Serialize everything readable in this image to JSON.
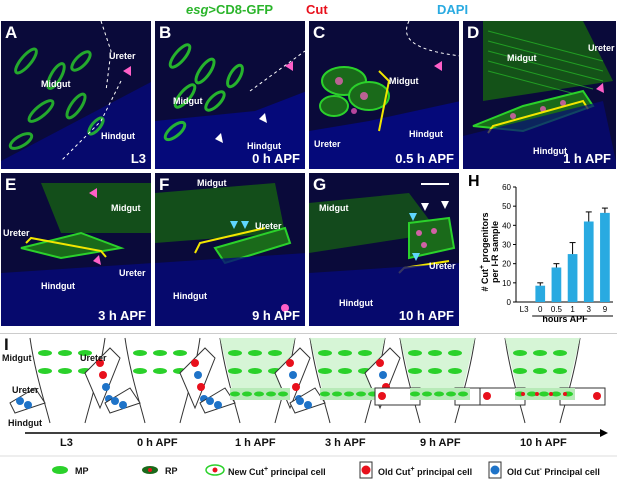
{
  "header": {
    "esg": "esg",
    "cd8": ">CD8-GFP",
    "cut": "Cut",
    "dapi": "DAPI"
  },
  "panels": [
    {
      "id": "A",
      "time": "L3",
      "tissues": [
        "Ureter",
        "Midgut",
        "Hindgut"
      ]
    },
    {
      "id": "B",
      "time": "0 h APF",
      "tissues": [
        "Midgut",
        "Hindgut"
      ]
    },
    {
      "id": "C",
      "time": "0.5 h APF",
      "tissues": [
        "Midgut",
        "Ureter",
        "Hindgut"
      ]
    },
    {
      "id": "D",
      "time": "1 h APF",
      "tissues": [
        "Midgut",
        "Ureter",
        "Hindgut"
      ]
    },
    {
      "id": "E",
      "time": "3 h APF",
      "tissues": [
        "Midgut",
        "Ureter",
        "Ureter",
        "Hindgut"
      ]
    },
    {
      "id": "F",
      "time": "9 h APF",
      "tissues": [
        "Midgut",
        "Ureter",
        "Hindgut"
      ]
    },
    {
      "id": "G",
      "time": "10 h APF",
      "tissues": [
        "Midgut",
        "Ureter",
        "Hindgut"
      ]
    }
  ],
  "chart_data": {
    "type": "bar",
    "panel_label": "H",
    "categories": [
      "L3",
      "0",
      "0.5",
      "1",
      "3",
      "9"
    ],
    "values": [
      0,
      8.5,
      18,
      25,
      42,
      46.5
    ],
    "errors": [
      0,
      1.5,
      2,
      6,
      5,
      2.5
    ],
    "ylim": [
      0,
      60
    ],
    "yticks": [
      0,
      10,
      20,
      30,
      40,
      50,
      60
    ],
    "ylabel_line1": "# Cut",
    "ylabel_sup": "+",
    "ylabel_line1b": " progenitors",
    "ylabel_line2": "per I-R sample",
    "xlabel": "hours APF",
    "bar_color": "#29aae1"
  },
  "diagram": {
    "panel_label": "I",
    "side_labels": {
      "midgut": "Midgut",
      "ureter_left": "Ureter",
      "ureter_right": "Ureter",
      "hindgut": "Hindgut"
    },
    "timeline": [
      "L3",
      "0 h APF",
      "1 h APF",
      "3 h APF",
      "9 h APF",
      "10 h APF"
    ]
  },
  "legend": {
    "mp": "MP",
    "rp": "RP",
    "new_cut": "New Cut",
    "new_cut_sup": "+",
    "new_cut_tail": " principal cell",
    "old_cut_pos": "Old Cut",
    "old_cut_pos_sup": "+",
    "old_cut_pos_tail": " principal cell",
    "old_cut_neg": "Old Cut",
    "old_cut_neg_sup": "-",
    "old_cut_neg_tail": " Principal cell"
  },
  "colors": {
    "green": "#2bd12b",
    "red": "#e8101c",
    "blue": "#1e73c8",
    "yellow": "#f2e600",
    "magenta": "#ff5fc8",
    "cyan": "#5fd7ff"
  }
}
